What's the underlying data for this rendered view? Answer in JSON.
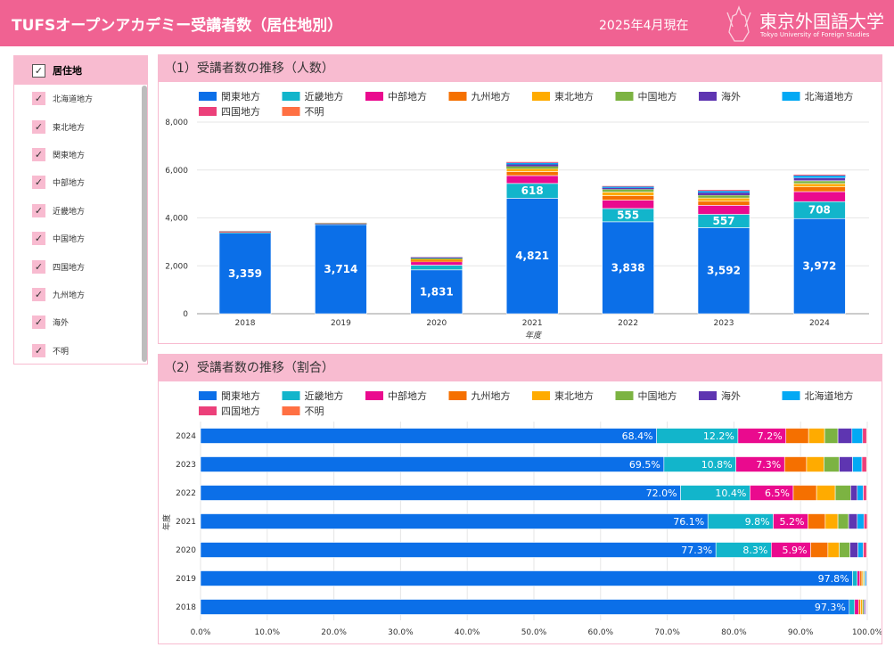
{
  "header": {
    "title": "TUFSオープンアカデミー受講者数（居住地別）",
    "as_of": "2025年4月現在",
    "logo_jp": "東京外国語大学",
    "logo_en": "Tokyo University of Foreign Studies"
  },
  "sidebar": {
    "title": "居住地",
    "items": [
      "北海道地方",
      "東北地方",
      "関東地方",
      "中部地方",
      "近畿地方",
      "中国地方",
      "四国地方",
      "九州地方",
      "海外",
      "不明"
    ]
  },
  "colors": {
    "header": "#f06292",
    "panel_header": "#f8bbd0"
  },
  "chart_data": [
    {
      "type": "bar",
      "stacked": true,
      "title": "（1）受講者数の推移（人数）",
      "xlabel": "年度",
      "ylabel": "",
      "ylim": [
        0,
        8000
      ],
      "yticks": [
        "0",
        "2,000",
        "4,000",
        "6,000",
        "8,000"
      ],
      "grid": true,
      "legend": "top",
      "categories": [
        "2018",
        "2019",
        "2020",
        "2021",
        "2022",
        "2023",
        "2024"
      ],
      "series": [
        {
          "name": "関東地方",
          "color": "#0b6fe8",
          "values": [
            3359,
            3714,
            1831,
            4821,
            3838,
            3592,
            3972
          ]
        },
        {
          "name": "近畿地方",
          "color": "#12b5cb",
          "values": [
            28,
            27,
            196,
            618,
            555,
            557,
            708
          ]
        },
        {
          "name": "中部地方",
          "color": "#ea0a8e",
          "values": [
            20,
            15,
            140,
            329,
            348,
            377,
            418
          ]
        },
        {
          "name": "九州地方",
          "color": "#f57000",
          "values": [
            12,
            10,
            62,
            165,
            187,
            171,
            197
          ]
        },
        {
          "name": "東北地方",
          "color": "#ffab00",
          "values": [
            10,
            9,
            40,
            120,
            150,
            134,
            139
          ]
        },
        {
          "name": "中国地方",
          "color": "#7cb342",
          "values": [
            8,
            7,
            38,
            100,
            120,
            119,
            116
          ]
        },
        {
          "name": "海外",
          "color": "#5e35b1",
          "values": [
            6,
            5,
            28,
            80,
            54,
            104,
            122
          ]
        },
        {
          "name": "北海道地方",
          "color": "#03a9f4",
          "values": [
            5,
            6,
            20,
            64,
            50,
            72,
            93
          ]
        },
        {
          "name": "四国地方",
          "color": "#ec407a",
          "values": [
            3,
            3,
            11,
            30,
            24,
            36,
            35
          ]
        },
        {
          "name": "不明",
          "color": "#ff7043",
          "values": [
            1,
            1,
            3,
            8,
            5,
            6,
            7
          ]
        }
      ]
    },
    {
      "type": "bar",
      "orientation": "horizontal",
      "stacked": true,
      "normalized": true,
      "title": "（2）受講者数の推移（割合）",
      "ylabel": "年度",
      "xlim": [
        0,
        100
      ],
      "xticks": [
        "0.0%",
        "10.0%",
        "20.0%",
        "30.0%",
        "40.0%",
        "50.0%",
        "60.0%",
        "70.0%",
        "80.0%",
        "90.0%",
        "100.0%"
      ],
      "grid": true,
      "legend": "top",
      "categories": [
        "2024",
        "2023",
        "2022",
        "2021",
        "2020",
        "2019",
        "2018"
      ],
      "series": [
        {
          "name": "関東地方",
          "values": [
            68.4,
            69.5,
            72.0,
            76.1,
            77.3,
            97.8,
            97.3
          ]
        },
        {
          "name": "近畿地方",
          "values": [
            12.2,
            10.8,
            10.4,
            9.8,
            8.3,
            0.7,
            0.8
          ]
        },
        {
          "name": "中部地方",
          "values": [
            7.2,
            7.3,
            6.5,
            5.2,
            5.9,
            0.4,
            0.6
          ]
        },
        {
          "name": "九州地方",
          "values": [
            3.4,
            3.3,
            3.5,
            2.6,
            2.6,
            0.3,
            0.3
          ]
        },
        {
          "name": "東北地方",
          "values": [
            2.4,
            2.6,
            2.8,
            1.9,
            1.7,
            0.2,
            0.3
          ]
        },
        {
          "name": "中国地方",
          "values": [
            2.0,
            2.3,
            2.3,
            1.6,
            1.6,
            0.2,
            0.2
          ]
        },
        {
          "name": "海外",
          "values": [
            2.1,
            2.0,
            1.0,
            1.3,
            1.2,
            0.1,
            0.2
          ]
        },
        {
          "name": "北海道地方",
          "values": [
            1.6,
            1.4,
            0.9,
            1.0,
            0.8,
            0.2,
            0.1
          ]
        },
        {
          "name": "四国地方",
          "values": [
            0.6,
            0.7,
            0.5,
            0.5,
            0.5,
            0.1,
            0.1
          ]
        },
        {
          "name": "不明",
          "values": [
            0.1,
            0.1,
            0.1,
            0.1,
            0.1,
            0.0,
            0.0
          ]
        }
      ]
    }
  ]
}
